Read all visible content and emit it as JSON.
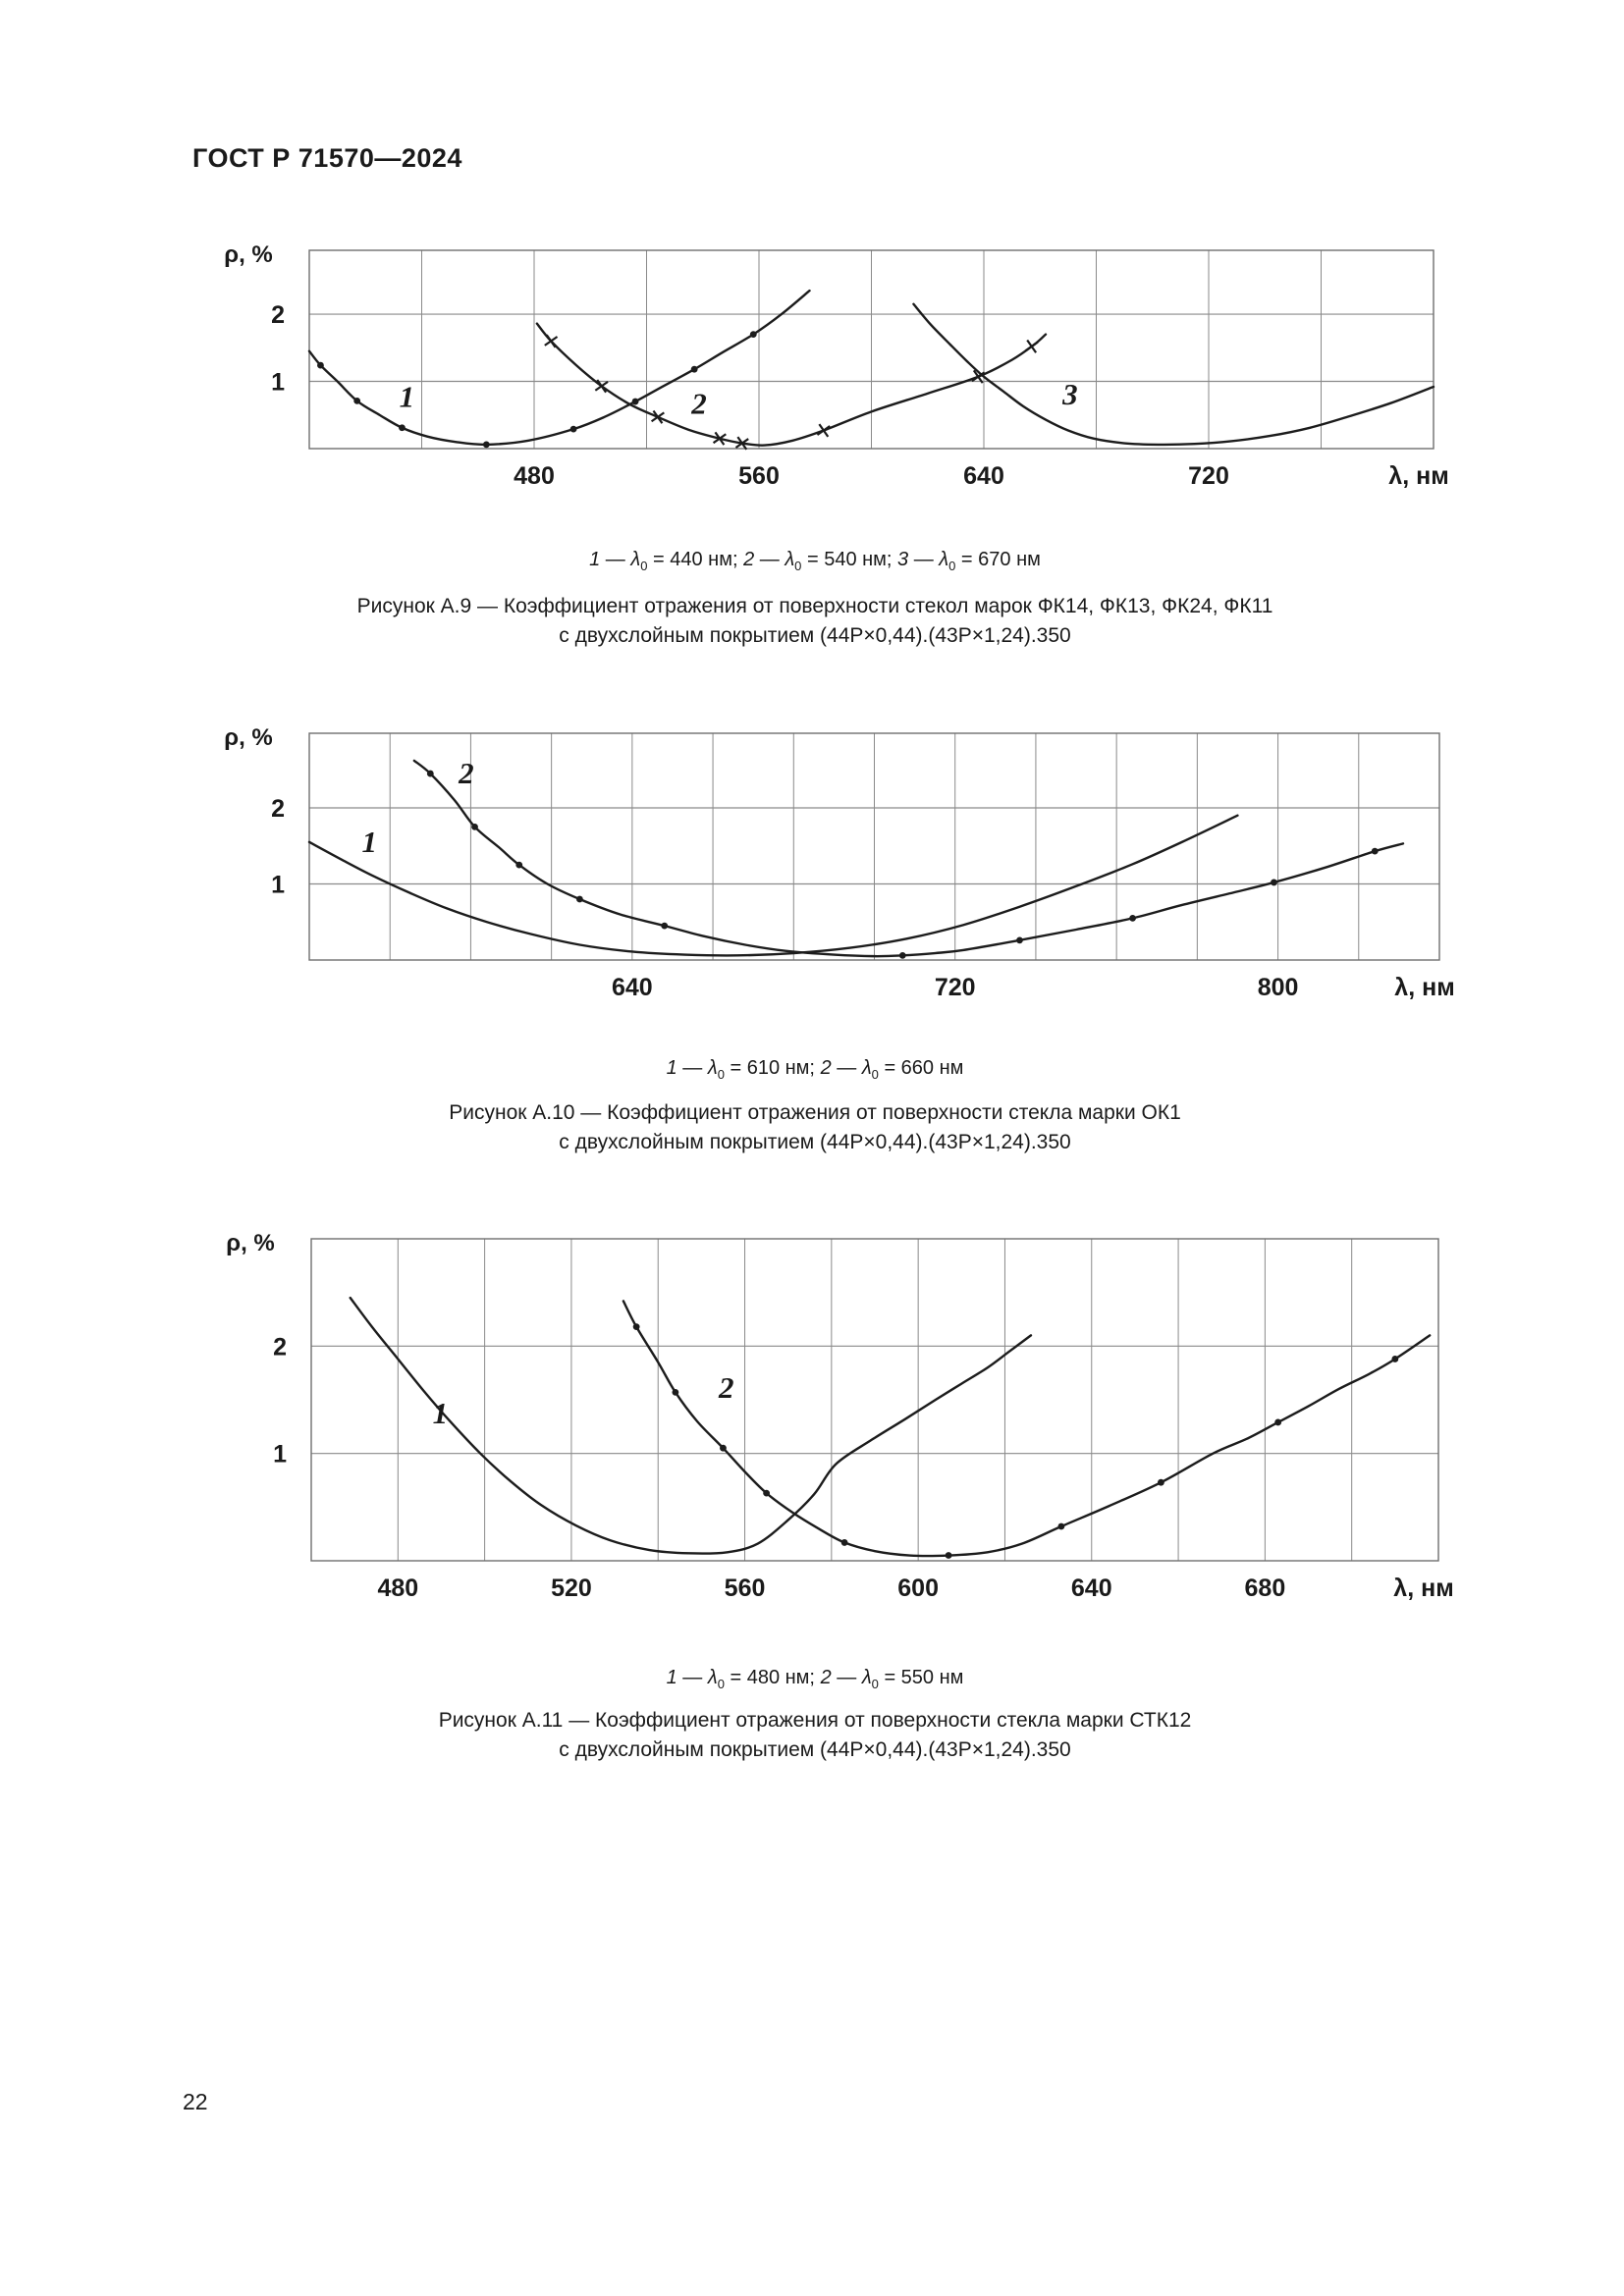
{
  "page": {
    "header": "ГОСТ Р 71570—2024",
    "page_number": "22"
  },
  "axis": {
    "y_label": "ρ, %",
    "x_unit_label": "λ, нм"
  },
  "chart_data": [
    {
      "type": "line",
      "figure": "А.9",
      "title_line1": "Рисунок А.9 — Коэффициент отражения от поверхности стекол марок ФК14, ФК13, ФК24, ФК11",
      "title_line2": "с двухслойным покрытием (44Р×0,44).(43Р×1,24).350",
      "xlabel": "λ, нм",
      "ylabel": "ρ, %",
      "lambda_unit": "нм",
      "xlim": [
        400,
        800
      ],
      "ylim": [
        0,
        2.95
      ],
      "x_gridstep": 40,
      "xticks": [
        480,
        560,
        640,
        720
      ],
      "yticks": [
        1,
        2
      ],
      "grid": true,
      "legend_position": "below-as-caption",
      "series": [
        {
          "name": "1",
          "lambda0": "440",
          "marker": "dot",
          "label_pos": [
            432,
            0.62
          ],
          "points": [
            [
              400,
              1.45
            ],
            [
              404,
              1.24
            ],
            [
              410,
              1.0
            ],
            [
              417,
              0.71
            ],
            [
              425,
              0.5
            ],
            [
              433,
              0.31
            ],
            [
              442,
              0.18
            ],
            [
              452,
              0.1
            ],
            [
              463,
              0.06
            ],
            [
              478,
              0.12
            ],
            [
              494,
              0.29
            ],
            [
              505,
              0.47
            ],
            [
              516,
              0.7
            ],
            [
              526,
              0.93
            ],
            [
              537,
              1.18
            ],
            [
              547,
              1.43
            ],
            [
              558,
              1.7
            ],
            [
              568,
              2.0
            ],
            [
              578,
              2.35
            ]
          ],
          "marker_points": [
            [
              404,
              1.24
            ],
            [
              417,
              0.71
            ],
            [
              433,
              0.31
            ],
            [
              463,
              0.06
            ],
            [
              494,
              0.29
            ],
            [
              516,
              0.7
            ],
            [
              537,
              1.18
            ],
            [
              558,
              1.7
            ]
          ]
        },
        {
          "name": "2",
          "lambda0": "540",
          "marker": "x",
          "label_pos": [
            536,
            0.52
          ],
          "points": [
            [
              481,
              1.86
            ],
            [
              486,
              1.6
            ],
            [
              495,
              1.24
            ],
            [
              504,
              0.93
            ],
            [
              514,
              0.66
            ],
            [
              524,
              0.47
            ],
            [
              535,
              0.28
            ],
            [
              546,
              0.15
            ],
            [
              554,
              0.08
            ],
            [
              562,
              0.05
            ],
            [
              572,
              0.12
            ],
            [
              583,
              0.27
            ],
            [
              600,
              0.55
            ],
            [
              620,
              0.82
            ],
            [
              638,
              1.07
            ],
            [
              650,
              1.32
            ],
            [
              658,
              1.55
            ],
            [
              662,
              1.7
            ]
          ],
          "marker_points": [
            [
              486,
              1.6
            ],
            [
              504,
              0.93
            ],
            [
              524,
              0.47
            ],
            [
              546,
              0.15
            ],
            [
              554,
              0.08
            ],
            [
              583,
              0.27
            ],
            [
              638,
              1.07
            ],
            [
              657,
              1.52
            ]
          ]
        },
        {
          "name": "3",
          "lambda0": "670",
          "marker": "none",
          "label_pos": [
            668,
            0.66
          ],
          "points": [
            [
              615,
              2.15
            ],
            [
              621,
              1.85
            ],
            [
              628,
              1.55
            ],
            [
              634,
              1.3
            ],
            [
              640,
              1.07
            ],
            [
              647,
              0.85
            ],
            [
              654,
              0.63
            ],
            [
              662,
              0.43
            ],
            [
              670,
              0.27
            ],
            [
              679,
              0.15
            ],
            [
              690,
              0.08
            ],
            [
              702,
              0.06
            ],
            [
              715,
              0.07
            ],
            [
              728,
              0.11
            ],
            [
              742,
              0.19
            ],
            [
              756,
              0.31
            ],
            [
              770,
              0.48
            ],
            [
              785,
              0.68
            ],
            [
              800,
              0.92
            ]
          ],
          "marker_points": []
        }
      ]
    },
    {
      "type": "line",
      "figure": "А.10",
      "title_line1": "Рисунок А.10 — Коэффициент отражения от поверхности стекла марки ОК1",
      "title_line2": "с двухслойным покрытием (44Р×0,44).(43Р×1,24).350",
      "xlabel": "λ, нм",
      "ylabel": "ρ, %",
      "lambda_unit": "нм",
      "xlim": [
        560,
        840
      ],
      "ylim": [
        0,
        2.98
      ],
      "x_gridstep": 20,
      "xticks": [
        640,
        720,
        800
      ],
      "yticks": [
        1,
        2
      ],
      "grid": true,
      "legend_position": "below-as-caption",
      "series": [
        {
          "name": "1",
          "lambda0": "610",
          "marker": "none",
          "label_pos": [
            573,
            1.42
          ],
          "points": [
            [
              560,
              1.55
            ],
            [
              568,
              1.32
            ],
            [
              576,
              1.1
            ],
            [
              585,
              0.88
            ],
            [
              594,
              0.68
            ],
            [
              604,
              0.5
            ],
            [
              615,
              0.34
            ],
            [
              627,
              0.2
            ],
            [
              640,
              0.11
            ],
            [
              653,
              0.07
            ],
            [
              666,
              0.06
            ],
            [
              680,
              0.09
            ],
            [
              694,
              0.16
            ],
            [
              708,
              0.28
            ],
            [
              722,
              0.46
            ],
            [
              736,
              0.7
            ],
            [
              750,
              0.97
            ],
            [
              764,
              1.26
            ],
            [
              777,
              1.57
            ],
            [
              790,
              1.9
            ]
          ],
          "marker_points": []
        },
        {
          "name": "2",
          "lambda0": "660",
          "marker": "dot",
          "label_pos": [
            597,
            2.32
          ],
          "points": [
            [
              586,
              2.62
            ],
            [
              590,
              2.45
            ],
            [
              596,
              2.1
            ],
            [
              601,
              1.75
            ],
            [
              607,
              1.48
            ],
            [
              612,
              1.25
            ],
            [
              619,
              1.0
            ],
            [
              627,
              0.8
            ],
            [
              637,
              0.6
            ],
            [
              648,
              0.45
            ],
            [
              658,
              0.31
            ],
            [
              668,
              0.2
            ],
            [
              678,
              0.12
            ],
            [
              690,
              0.07
            ],
            [
              700,
              0.05
            ],
            [
              707,
              0.06
            ],
            [
              715,
              0.09
            ],
            [
              722,
              0.13
            ],
            [
              736,
              0.26
            ],
            [
              750,
              0.4
            ],
            [
              764,
              0.55
            ],
            [
              776,
              0.72
            ],
            [
              790,
              0.9
            ],
            [
              799,
              1.02
            ],
            [
              812,
              1.22
            ],
            [
              824,
              1.43
            ],
            [
              831,
              1.53
            ]
          ],
          "marker_points": [
            [
              590,
              2.45
            ],
            [
              601,
              1.75
            ],
            [
              612,
              1.25
            ],
            [
              627,
              0.8
            ],
            [
              648,
              0.45
            ],
            [
              707,
              0.06
            ],
            [
              736,
              0.26
            ],
            [
              764,
              0.55
            ],
            [
              799,
              1.02
            ],
            [
              824,
              1.43
            ]
          ]
        }
      ]
    },
    {
      "type": "line",
      "figure": "А.11",
      "title_line1": "Рисунок А.11 — Коэффициент отражения от поверхности стекла марки СТК12",
      "title_line2": "с двухслойным покрытием (44Р×0,44).(43Р×1,24).350",
      "xlabel": "λ, нм",
      "ylabel": "ρ, %",
      "lambda_unit": "нм",
      "xlim": [
        460,
        720
      ],
      "ylim": [
        0,
        3.0
      ],
      "x_gridstep": 20,
      "xticks": [
        480,
        520,
        560,
        600,
        640,
        680
      ],
      "yticks": [
        1,
        2
      ],
      "grid": true,
      "legend_position": "below-as-caption",
      "series": [
        {
          "name": "1",
          "lambda0": "480",
          "marker": "none",
          "label_pos": [
            488,
            1.28
          ],
          "points": [
            [
              469,
              2.45
            ],
            [
              474,
              2.18
            ],
            [
              480,
              1.88
            ],
            [
              486,
              1.58
            ],
            [
              492,
              1.3
            ],
            [
              499,
              1.0
            ],
            [
              506,
              0.74
            ],
            [
              513,
              0.52
            ],
            [
              521,
              0.33
            ],
            [
              529,
              0.19
            ],
            [
              538,
              0.1
            ],
            [
              547,
              0.07
            ],
            [
              556,
              0.08
            ],
            [
              563,
              0.16
            ],
            [
              570,
              0.38
            ],
            [
              576,
              0.62
            ],
            [
              581,
              0.9
            ],
            [
              589,
              1.12
            ],
            [
              597,
              1.32
            ],
            [
              604,
              1.5
            ],
            [
              610,
              1.65
            ],
            [
              616,
              1.8
            ],
            [
              621,
              1.95
            ],
            [
              626,
              2.1
            ]
          ],
          "marker_points": []
        },
        {
          "name": "2",
          "lambda0": "550",
          "marker": "dot",
          "label_pos": [
            554,
            1.52
          ],
          "points": [
            [
              532,
              2.42
            ],
            [
              535,
              2.18
            ],
            [
              540,
              1.85
            ],
            [
              544,
              1.57
            ],
            [
              549,
              1.3
            ],
            [
              555,
              1.05
            ],
            [
              560,
              0.83
            ],
            [
              565,
              0.63
            ],
            [
              571,
              0.45
            ],
            [
              577,
              0.3
            ],
            [
              583,
              0.17
            ],
            [
              590,
              0.09
            ],
            [
              598,
              0.05
            ],
            [
              607,
              0.05
            ],
            [
              616,
              0.08
            ],
            [
              624,
              0.16
            ],
            [
              633,
              0.32
            ],
            [
              644,
              0.51
            ],
            [
              656,
              0.73
            ],
            [
              668,
              1.0
            ],
            [
              676,
              1.14
            ],
            [
              683,
              1.29
            ],
            [
              690,
              1.44
            ],
            [
              697,
              1.6
            ],
            [
              704,
              1.74
            ],
            [
              710,
              1.88
            ],
            [
              718,
              2.1
            ]
          ],
          "marker_points": [
            [
              535,
              2.18
            ],
            [
              544,
              1.57
            ],
            [
              555,
              1.05
            ],
            [
              565,
              0.63
            ],
            [
              583,
              0.17
            ],
            [
              607,
              0.05
            ],
            [
              633,
              0.32
            ],
            [
              656,
              0.73
            ],
            [
              683,
              1.29
            ],
            [
              710,
              1.88
            ]
          ]
        }
      ]
    }
  ]
}
